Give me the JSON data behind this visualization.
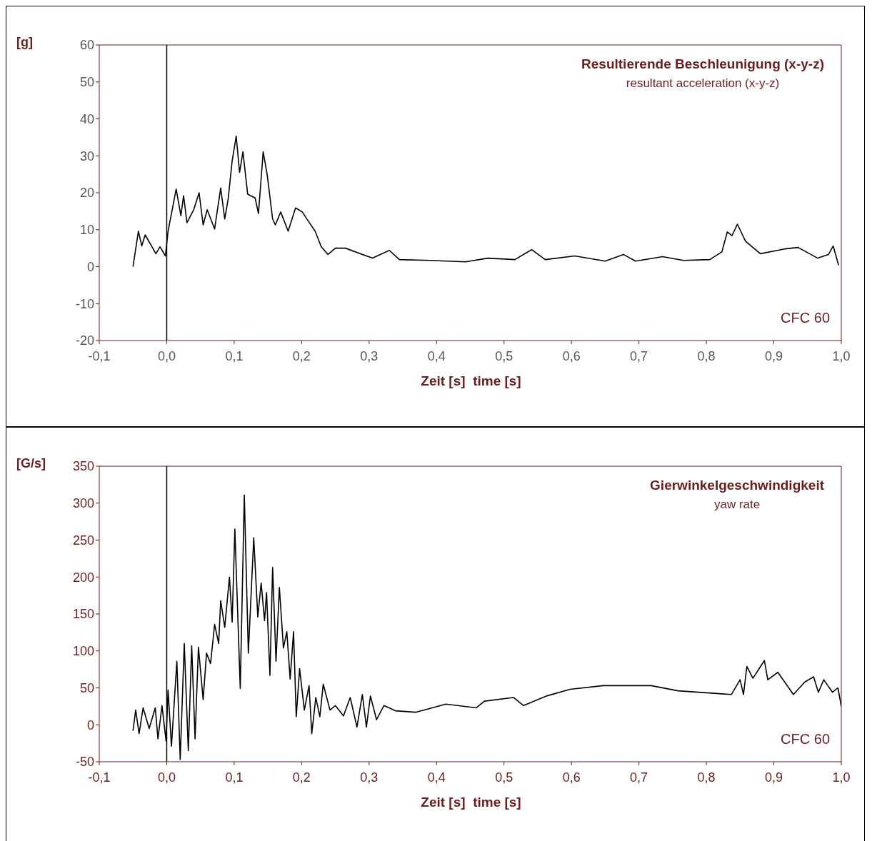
{
  "chart_data": [
    {
      "type": "line",
      "title": "Resultierende Beschleunigung (x-y-z)",
      "subtitle": "resultant acceleration (x-y-z)",
      "xlabel": "Zeit [s]  time [s]",
      "ylabel": "[g]",
      "annotations": [
        "CFC 60"
      ],
      "xlim": [
        -0.1,
        1.0
      ],
      "xticks": [
        {
          "value": -0.1,
          "label": "-0,1"
        },
        {
          "value": 0,
          "label": "0,0"
        },
        {
          "value": 0.1,
          "label": "0,1"
        },
        {
          "value": 0.2,
          "label": "0,2"
        },
        {
          "value": 0.3,
          "label": "0,3"
        },
        {
          "value": 0.4,
          "label": "0,4"
        },
        {
          "value": 0.5,
          "label": "0,5"
        },
        {
          "value": 0.6,
          "label": "0,6"
        },
        {
          "value": 0.7,
          "label": "0,7"
        },
        {
          "value": 0.8,
          "label": "0,8"
        },
        {
          "value": 0.9,
          "label": "0,9"
        },
        {
          "value": 1.0,
          "label": "1,0"
        }
      ],
      "ylim": [
        -20,
        60
      ],
      "yticks": [
        -20,
        -10,
        0,
        10,
        20,
        30,
        40,
        50,
        60
      ],
      "ref_lines": [
        {
          "axis": "x",
          "value": 0,
          "color": "#000000"
        }
      ],
      "series": [
        {
          "color": "#000000",
          "x": [
            -0.05,
            -0.042,
            -0.037,
            -0.032,
            -0.016,
            -0.01,
            -0.002,
            0.002,
            0.014,
            0.021,
            0.025,
            0.03,
            0.04,
            0.048,
            0.054,
            0.06,
            0.071,
            0.08,
            0.086,
            0.091,
            0.097,
            0.103,
            0.108,
            0.113,
            0.12,
            0.131,
            0.136,
            0.143,
            0.149,
            0.157,
            0.161,
            0.169,
            0.18,
            0.191,
            0.201,
            0.21,
            0.22,
            0.229,
            0.239,
            0.25,
            0.265,
            0.305,
            0.33,
            0.345,
            0.39,
            0.443,
            0.476,
            0.516,
            0.541,
            0.561,
            0.605,
            0.65,
            0.677,
            0.695,
            0.735,
            0.766,
            0.805,
            0.823,
            0.831,
            0.838,
            0.846,
            0.858,
            0.88,
            0.916,
            0.936,
            0.965,
            0.981,
            0.988,
            0.996
          ],
          "values": [
            0,
            9.6,
            5.6,
            8.6,
            3.5,
            5.4,
            2.9,
            9.6,
            21,
            13.8,
            19.2,
            11.9,
            15.4,
            20,
            11.3,
            15.4,
            10.2,
            21.3,
            12.9,
            18.2,
            28.6,
            35.3,
            25.5,
            31.1,
            19.6,
            18.6,
            14.4,
            31.1,
            24.8,
            12.9,
            11.3,
            14.8,
            9.6,
            15.9,
            14.8,
            12.3,
            9.6,
            5.4,
            3.3,
            5,
            5,
            2.3,
            4.4,
            1.9,
            1.7,
            1.3,
            2.3,
            1.9,
            4.6,
            1.9,
            2.9,
            1.5,
            3.3,
            1.5,
            2.7,
            1.7,
            1.9,
            4,
            9.4,
            8.4,
            11.5,
            6.9,
            3.5,
            4.8,
            5.2,
            2.3,
            3.3,
            5.6,
            0.4
          ]
        }
      ]
    },
    {
      "type": "line",
      "title": "Gierwinkelgeschwindigkeit",
      "subtitle": "yaw rate",
      "xlabel": "Zeit [s]  time [s]",
      "ylabel": "[G/s]",
      "annotations": [
        "CFC 60"
      ],
      "xlim": [
        -0.1,
        1.0
      ],
      "xticks": [
        {
          "value": -0.1,
          "label": "-0,1"
        },
        {
          "value": 0,
          "label": "0,0"
        },
        {
          "value": 0.1,
          "label": "0,1"
        },
        {
          "value": 0.2,
          "label": "0,2"
        },
        {
          "value": 0.3,
          "label": "0,3"
        },
        {
          "value": 0.4,
          "label": "0,4"
        },
        {
          "value": 0.5,
          "label": "0,5"
        },
        {
          "value": 0.6,
          "label": "0,6"
        },
        {
          "value": 0.7,
          "label": "0,7"
        },
        {
          "value": 0.8,
          "label": "0,8"
        },
        {
          "value": 0.9,
          "label": "0,9"
        },
        {
          "value": 1.0,
          "label": "1,0"
        }
      ],
      "ylim": [
        -50,
        350
      ],
      "yticks": [
        -50,
        0,
        50,
        100,
        150,
        200,
        250,
        300,
        350
      ],
      "ref_lines": [
        {
          "axis": "x",
          "value": 0,
          "color": "#000000"
        }
      ],
      "series": [
        {
          "color": "#000000",
          "x": [
            -0.05,
            -0.046,
            -0.041,
            -0.035,
            -0.026,
            -0.017,
            -0.013,
            -0.007,
            -0.001,
            0.002,
            0.007,
            0.015,
            0.02,
            0.026,
            0.032,
            0.037,
            0.042,
            0.047,
            0.054,
            0.059,
            0.065,
            0.071,
            0.077,
            0.08,
            0.086,
            0.093,
            0.097,
            0.101,
            0.109,
            0.115,
            0.121,
            0.129,
            0.135,
            0.14,
            0.145,
            0.148,
            0.153,
            0.157,
            0.162,
            0.167,
            0.173,
            0.178,
            0.183,
            0.188,
            0.192,
            0.197,
            0.204,
            0.211,
            0.215,
            0.221,
            0.227,
            0.232,
            0.242,
            0.25,
            0.262,
            0.272,
            0.282,
            0.29,
            0.296,
            0.302,
            0.311,
            0.322,
            0.339,
            0.369,
            0.414,
            0.459,
            0.471,
            0.514,
            0.529,
            0.563,
            0.598,
            0.647,
            0.718,
            0.758,
            0.837,
            0.85,
            0.855,
            0.86,
            0.869,
            0.886,
            0.891,
            0.906,
            0.929,
            0.946,
            0.959,
            0.966,
            0.974,
            0.987,
            0.995,
            1.0
          ],
          "values": [
            -8,
            20,
            -12,
            23,
            -5,
            23,
            -19,
            26,
            -22,
            47,
            -29,
            86,
            -47,
            110,
            -35,
            107,
            -19,
            105,
            34,
            97,
            83,
            136,
            110,
            168,
            132,
            200,
            139,
            265,
            49,
            311,
            97,
            253,
            146,
            192,
            141,
            179,
            67,
            213,
            86,
            186,
            104,
            126,
            62,
            126,
            11,
            76,
            20,
            53,
            -12,
            37,
            11,
            55,
            20,
            26,
            12,
            37,
            -3,
            41,
            -3,
            39,
            7,
            26,
            19,
            17,
            28,
            23,
            32,
            37,
            26,
            39,
            48,
            53,
            53,
            46,
            41,
            61,
            41,
            79,
            63,
            87,
            61,
            71,
            41,
            58,
            65,
            44,
            61,
            44,
            50,
            25
          ]
        }
      ]
    }
  ]
}
